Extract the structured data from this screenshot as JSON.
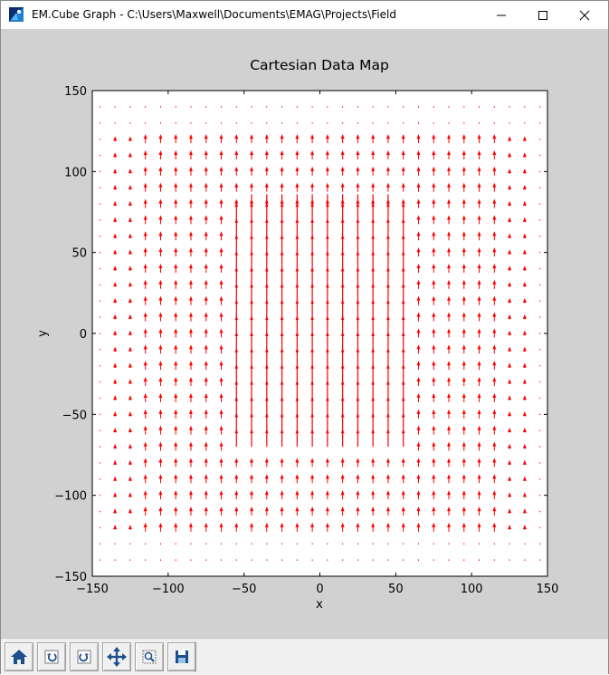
{
  "window": {
    "title": "EM.Cube Graph - C:\\Users\\Maxwell\\Documents\\EMAG\\Projects\\Field",
    "icon": "emcube-app-icon",
    "controls": [
      "minimize-icon",
      "maximize-icon",
      "close-icon"
    ]
  },
  "toolbar": {
    "buttons": [
      {
        "name": "home-button",
        "icon": "home-icon"
      },
      {
        "name": "back-button",
        "icon": "back-arrow-icon"
      },
      {
        "name": "forward-button",
        "icon": "forward-arrow-icon"
      },
      {
        "name": "pan-button",
        "icon": "move-arrows-icon"
      },
      {
        "name": "zoom-button",
        "icon": "zoom-rect-icon"
      },
      {
        "name": "save-button",
        "icon": "save-disk-icon"
      }
    ]
  },
  "colors": {
    "arrow": "#ff0000",
    "frame_bg": "#d1d1d1",
    "axes_bg": "#ffffff"
  },
  "chart_data": {
    "type": "quiver",
    "title": "Cartesian Data Map",
    "xlabel": "x",
    "ylabel": "y",
    "xlim": [
      -150,
      150
    ],
    "ylim": [
      -150,
      150
    ],
    "xticks": [
      "−150",
      "−100",
      "−50",
      "0",
      "50",
      "100",
      "150"
    ],
    "yticks": [
      "150",
      "100",
      "50",
      "0",
      "−50",
      "−100",
      "−150"
    ],
    "xtick_values": [
      -150,
      -100,
      -50,
      0,
      50,
      100,
      150
    ],
    "ytick_values": [
      150,
      100,
      50,
      0,
      -50,
      -100,
      -150
    ],
    "grid": false,
    "field": {
      "description_x_range": [
        -145,
        145
      ],
      "description_y_range": [
        -140,
        140
      ],
      "spacing": 10,
      "direction": "+y",
      "max_arrow_length_data_units": 100
    }
  }
}
